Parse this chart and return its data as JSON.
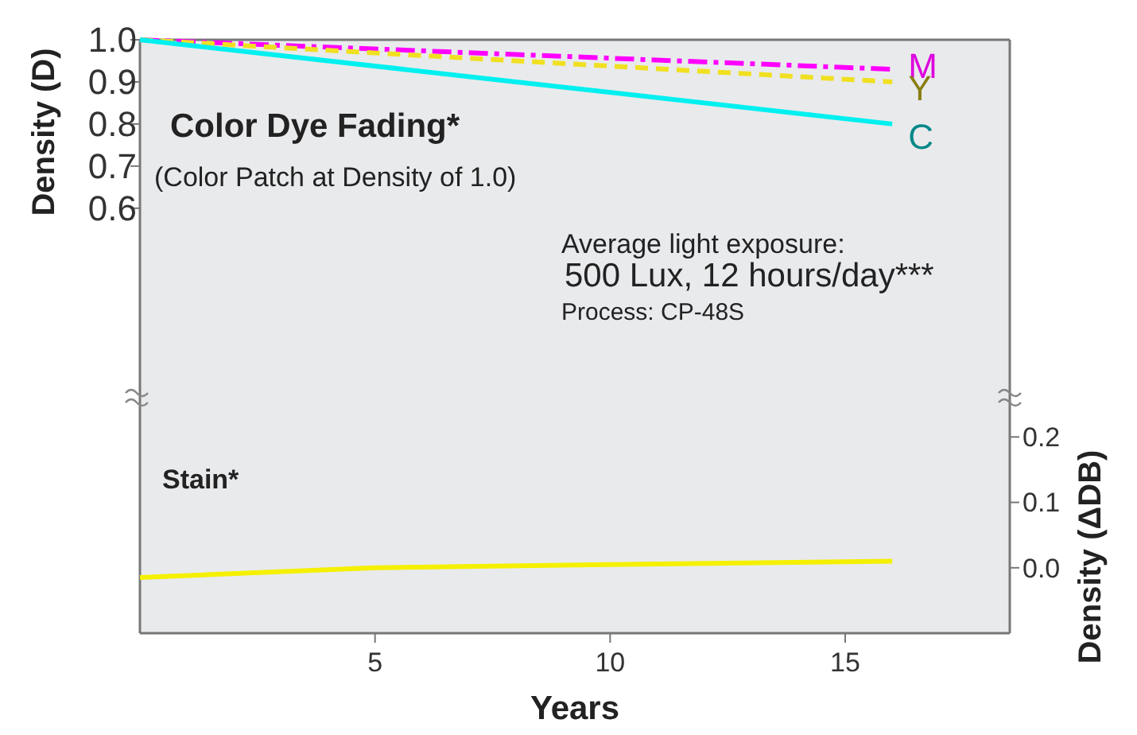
{
  "chart_data": [
    {
      "type": "line",
      "ylabel": "Density (D)",
      "xlim": [
        0,
        18.5
      ],
      "ylim": [
        0.15,
        1.0
      ],
      "yticks": [
        {
          "value": 1.0,
          "label": "1.0"
        },
        0.9,
        0.8,
        0.7,
        0.6
      ],
      "tick_labels": "y",
      "grid": false,
      "legend": false,
      "x": [
        0,
        8,
        16
      ],
      "series": [
        {
          "name": "M",
          "color": "#ff00ff",
          "line_style": "dashdot",
          "values": [
            1.0,
            0.965,
            0.93
          ]
        },
        {
          "name": "Y",
          "color": "#f0e020",
          "line_style": "dashed",
          "values": [
            1.0,
            0.95,
            0.9
          ]
        },
        {
          "name": "C",
          "color": "#00f0f0",
          "line_style": "solid",
          "values": [
            1.0,
            0.9,
            0.8
          ]
        }
      ],
      "annotations": [
        "Color Dye Fading*",
        "(Color Patch at Density of 1.0)",
        "Average light exposure:",
        "500 Lux, 12 hours/day***",
        "Process: CP-48S"
      ]
    },
    {
      "type": "line",
      "xlabel": "Years",
      "y2label": "Density (ΔDB)",
      "xlim": [
        0,
        18.5
      ],
      "xticks": [
        5,
        10,
        15
      ],
      "y2lim": [
        -0.1,
        0.26
      ],
      "y2ticks": [
        {
          "value": 0.0,
          "label": "0.0"
        },
        0.1,
        0.2
      ],
      "grid": false,
      "legend": false,
      "x": [
        0,
        5,
        10,
        16
      ],
      "series": [
        {
          "color": "#f5f000",
          "axis": "y2",
          "line_style": "solid",
          "values": [
            -0.015,
            0.0,
            0.005,
            0.01
          ]
        }
      ],
      "annotations": [
        "Stain*"
      ]
    }
  ]
}
